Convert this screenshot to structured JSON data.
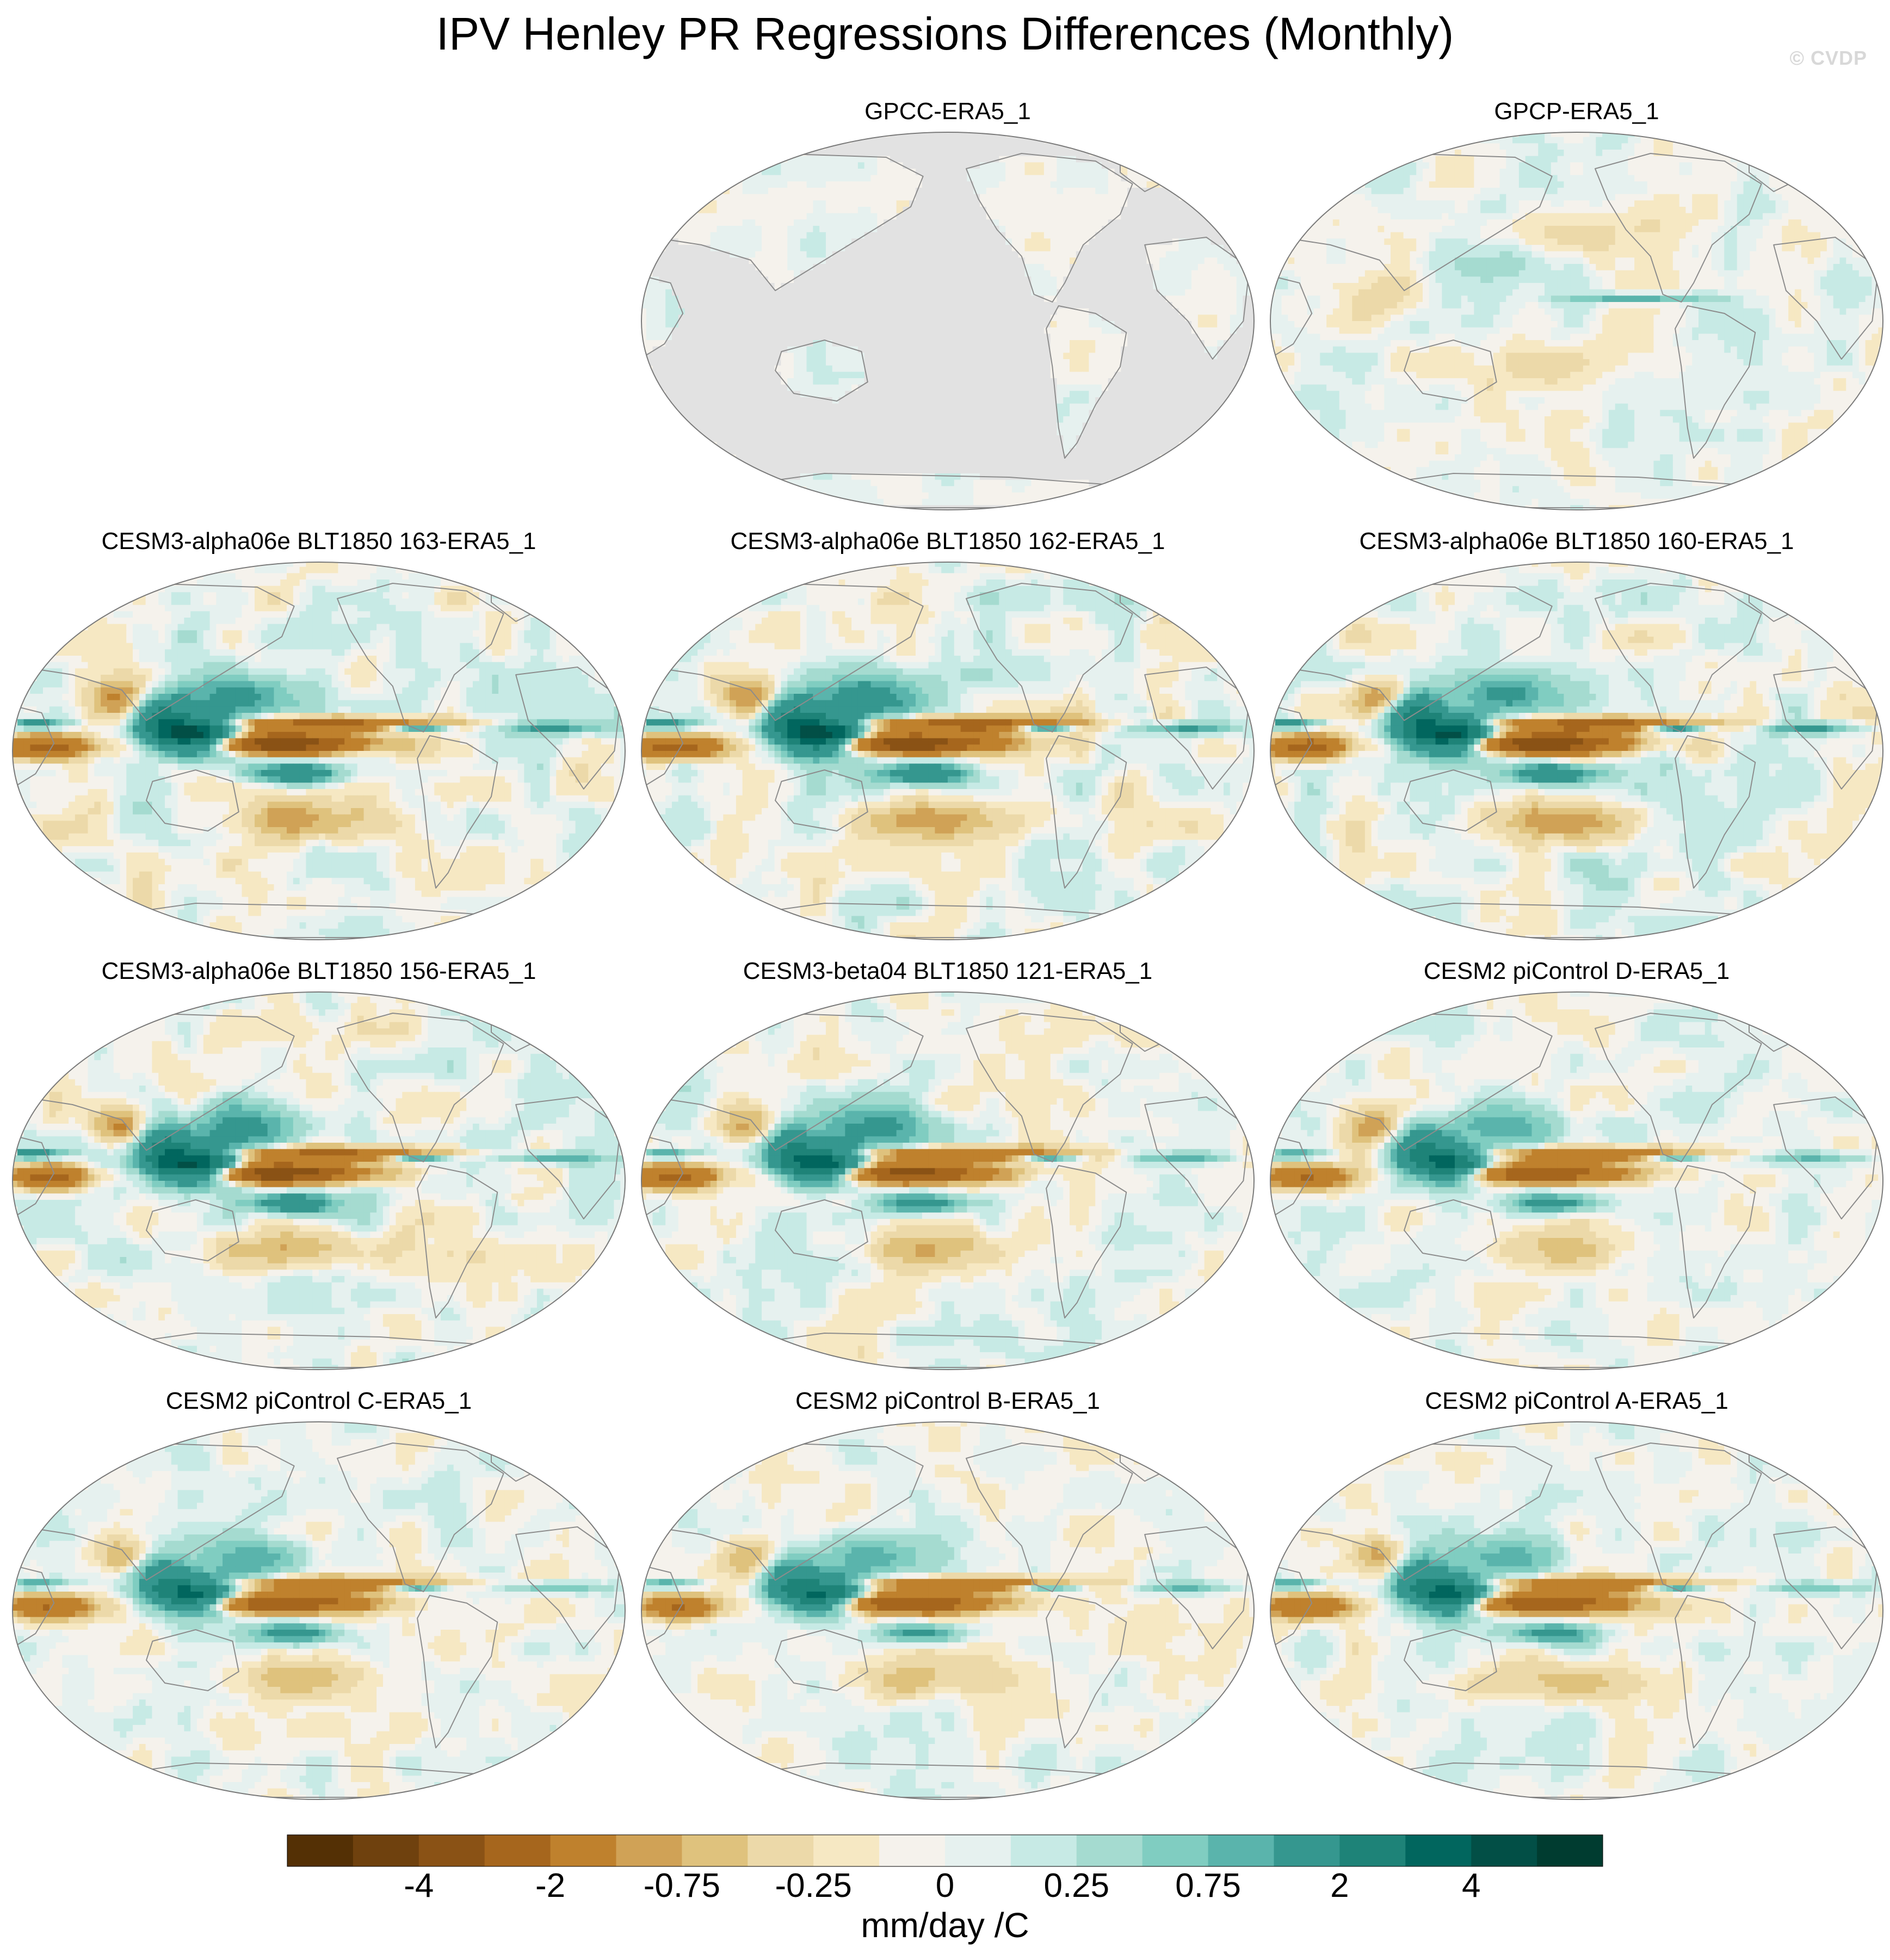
{
  "title": "IPV Henley PR Regressions Differences (Monthly)",
  "watermark": "© CVDP",
  "colors": {
    "land_mask": "#e2e2e2",
    "ocean_neutral": "#f5f1e8",
    "coastline": "#8c8c8c",
    "border": "#7a7a7a"
  },
  "chart_data": {
    "type": "heatmap",
    "projection": "Robinson-like global map, Pacific-centered",
    "panels": [
      {
        "title": "GPCC-ERA5_1",
        "pattern": "land_only",
        "amp": 0.4
      },
      {
        "title": "GPCP-ERA5_1",
        "pattern": "gpcp",
        "amp": 0.7
      },
      {
        "title": "CESM3-alpha06e BLT1850 163-ERA5_1",
        "pattern": "model",
        "amp": 1.0
      },
      {
        "title": "CESM3-alpha06e BLT1850 162-ERA5_1",
        "pattern": "model",
        "amp": 1.0
      },
      {
        "title": "CESM3-alpha06e BLT1850 160-ERA5_1",
        "pattern": "model",
        "amp": 1.0
      },
      {
        "title": "CESM3-alpha06e BLT1850 156-ERA5_1",
        "pattern": "model",
        "amp": 0.95
      },
      {
        "title": "CESM3-beta04 BLT1850 121-ERA5_1",
        "pattern": "model",
        "amp": 0.85
      },
      {
        "title": "CESM2 piControl D-ERA5_1",
        "pattern": "model",
        "amp": 0.75
      },
      {
        "title": "CESM2 piControl C-ERA5_1",
        "pattern": "model",
        "amp": 0.75
      },
      {
        "title": "CESM2 piControl B-ERA5_1",
        "pattern": "model",
        "amp": 0.75
      },
      {
        "title": "CESM2 piControl A-ERA5_1",
        "pattern": "model",
        "amp": 0.75
      }
    ],
    "colorbar": {
      "units": "mm/day /C",
      "levels": [
        -5,
        -4,
        -3,
        -2,
        -1,
        -0.75,
        -0.5,
        -0.25,
        -0.1,
        0,
        0.1,
        0.25,
        0.5,
        0.75,
        1,
        2,
        3,
        4,
        5
      ],
      "tick_labels": [
        "-4",
        "-2",
        "-0.75",
        "-0.25",
        "0",
        "0.25",
        "0.75",
        "2",
        "4"
      ],
      "colors": [
        "#543005",
        "#6f410e",
        "#8a5215",
        "#a6661d",
        "#bf812d",
        "#d0a256",
        "#dfc27d",
        "#ecd9a9",
        "#f6e8c3",
        "#f5f2ec",
        "#e6f1ef",
        "#c7eae5",
        "#a5dbd0",
        "#80cdc1",
        "#5ab4ac",
        "#35978f",
        "#1e8378",
        "#01665e",
        "#024f46",
        "#003c30"
      ]
    }
  }
}
